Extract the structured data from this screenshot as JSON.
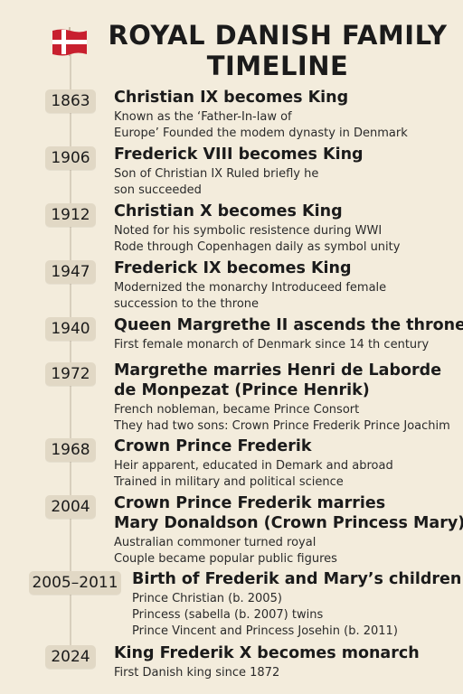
{
  "title": [
    "ROYAL DANISH FAMILY",
    "TIMELINE"
  ],
  "flag_colors": {
    "red": "#c8202f",
    "white": "#ffffff"
  },
  "events": [
    {
      "year": "1863",
      "title": [
        "Christian IX becomes King"
      ],
      "desc": [
        "Known as the ‘Father-In-law of",
        "Europe’ Founded the modem dynasty in Denmark"
      ]
    },
    {
      "year": "1906",
      "title": [
        "Frederick VIII becomes King"
      ],
      "desc": [
        "Son of Christian IX  Ruled briefly he",
        "son succeeded"
      ]
    },
    {
      "year": "1912",
      "title": [
        "Christian X becomes King"
      ],
      "desc": [
        "Noted for his symbolic resistence during WWI",
        "Rode through Copenhagen daily as symbol unity"
      ]
    },
    {
      "year": "1947",
      "title": [
        "Frederick IX becomes King"
      ],
      "desc": [
        "Modernized the monarchy  Introduceed female",
        "succession to the throne"
      ]
    },
    {
      "year": "1940",
      "title": [
        "Queen Margrethe II ascends the throne"
      ],
      "desc": [
        "First female monarch of Denmark since 14 th century"
      ]
    },
    {
      "year": "1972",
      "title": [
        "Margrethe marries Henri de Laborde",
        "de Monpezat (Prince Henrik)"
      ],
      "desc": [
        "French nobleman, became Prince Consort",
        "They had two sons: Crown Prince Frederik  Prince Joachim"
      ]
    },
    {
      "year": "1968",
      "title": [
        "Crown Prince Frederik"
      ],
      "desc": [
        "Heir apparent, educated in Demark and abroad",
        "Trained in military and political science"
      ]
    },
    {
      "year": "2004",
      "title": [
        "Crown Prince Frederik marries",
        "Mary Donaldson (Crown Princess Mary)"
      ],
      "desc": [
        "Australian commoner turned royal",
        "Couple became popular public figures"
      ]
    },
    {
      "year": "2005–2011",
      "title": [
        "Birth of Frederik and Mary’s children"
      ],
      "desc": [
        "Prince Christian (b. 2005)",
        "Princess (sabella (b. 2007)  twins",
        "Prince Vincent and Princess Josehin (b. 2011)"
      ]
    },
    {
      "year": "2024",
      "title": [
        "King Frederik X becomes monarch"
      ],
      "desc": [
        "First Danish king since 1872"
      ]
    }
  ]
}
